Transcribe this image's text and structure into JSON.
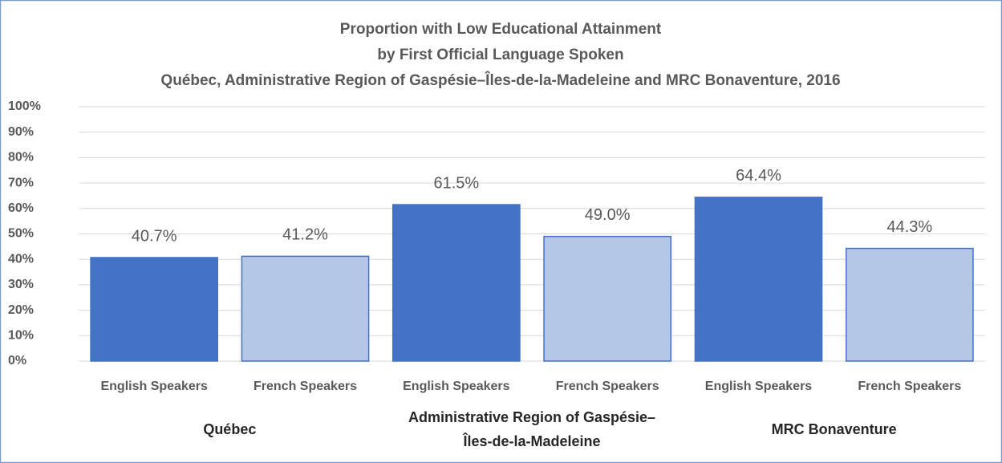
{
  "chart_data": {
    "type": "bar",
    "title": [
      "Proportion with Low Educational Attainment",
      "by First Official Language Spoken",
      "Québec, Administrative Region of Gaspésie–Îles-de-la-Madeleine and MRC Bonaventure, 2016"
    ],
    "categories": [
      "English Speakers",
      "French Speakers",
      "English Speakers",
      "French Speakers",
      "English Speakers",
      "French Speakers"
    ],
    "groups": [
      "Québec",
      "Administrative Region of Gaspésie–Îles-de-la-Madeleine",
      "MRC Bonaventure"
    ],
    "values": [
      40.7,
      41.2,
      61.5,
      49.0,
      64.4,
      44.3
    ],
    "value_labels": [
      "40.7%",
      "41.2%",
      "61.5%",
      "49.0%",
      "64.4%",
      "44.3%"
    ],
    "colors": [
      "#4472c4",
      "#b4c7e7",
      "#4472c4",
      "#b4c7e7",
      "#4472c4",
      "#b4c7e7"
    ],
    "ylim": [
      0,
      100
    ],
    "yticks": [
      {
        "value": 0,
        "label": "0%"
      },
      {
        "value": 10,
        "label": "10%"
      },
      {
        "value": 20,
        "label": "20%"
      },
      {
        "value": 30,
        "label": "30%"
      },
      {
        "value": 40,
        "label": "40%"
      },
      {
        "value": 50,
        "label": "50%"
      },
      {
        "value": 60,
        "label": "60%"
      },
      {
        "value": 70,
        "label": "70%"
      },
      {
        "value": 80,
        "label": "80%"
      },
      {
        "value": 90,
        "label": "90%"
      },
      {
        "value": 100,
        "label": "100%"
      }
    ],
    "grid": true
  }
}
